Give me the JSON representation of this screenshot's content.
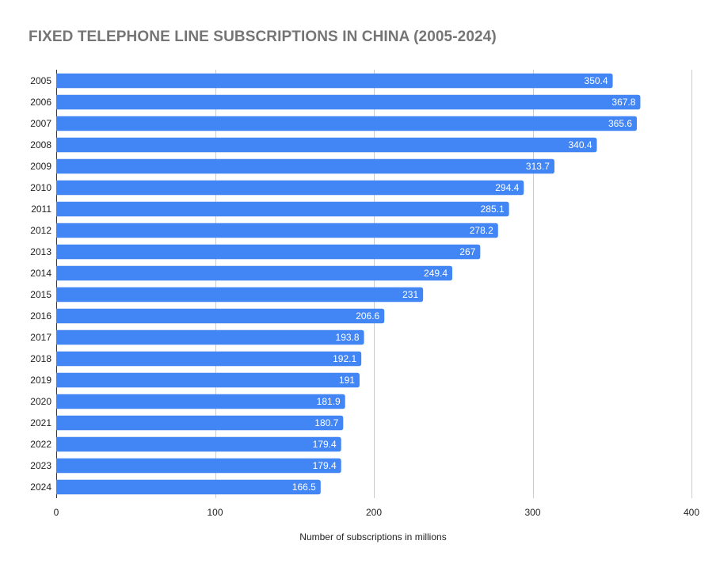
{
  "chart_data": {
    "type": "bar",
    "orientation": "horizontal",
    "title": "FIXED TELEPHONE LINE SUBSCRIPTIONS IN CHINA (2005-2024)",
    "xlabel": "Number of subscriptions in millions",
    "ylabel": "",
    "categories": [
      "2005",
      "2006",
      "2007",
      "2008",
      "2009",
      "2010",
      "2011",
      "2012",
      "2013",
      "2014",
      "2015",
      "2016",
      "2017",
      "2018",
      "2019",
      "2020",
      "2021",
      "2022",
      "2023",
      "2024"
    ],
    "values": [
      350.4,
      367.8,
      365.6,
      340.4,
      313.7,
      294.4,
      285.1,
      278.2,
      267,
      249.4,
      231,
      206.6,
      193.8,
      192.1,
      191,
      181.9,
      180.7,
      179.4,
      179.4,
      166.5
    ],
    "data_labels": [
      "350.4",
      "367.8",
      "365.6",
      "340.4",
      "313.7",
      "294.4",
      "285.1",
      "278.2",
      "267",
      "249.4",
      "231",
      "206.6",
      "193.8",
      "192.1",
      "191",
      "181.9",
      "180.7",
      "179.4",
      "179.4",
      "166.5"
    ],
    "xlim": [
      0,
      400
    ],
    "x_ticks": [
      "0",
      "100",
      "200",
      "300",
      "400"
    ],
    "grid": "vertical",
    "legend": "none",
    "colors": {
      "bar": "#4285f4",
      "grid": "#cccccc",
      "axis": "#333333",
      "title": "#757575",
      "text": "#222222",
      "data_label": "#ffffff"
    }
  }
}
